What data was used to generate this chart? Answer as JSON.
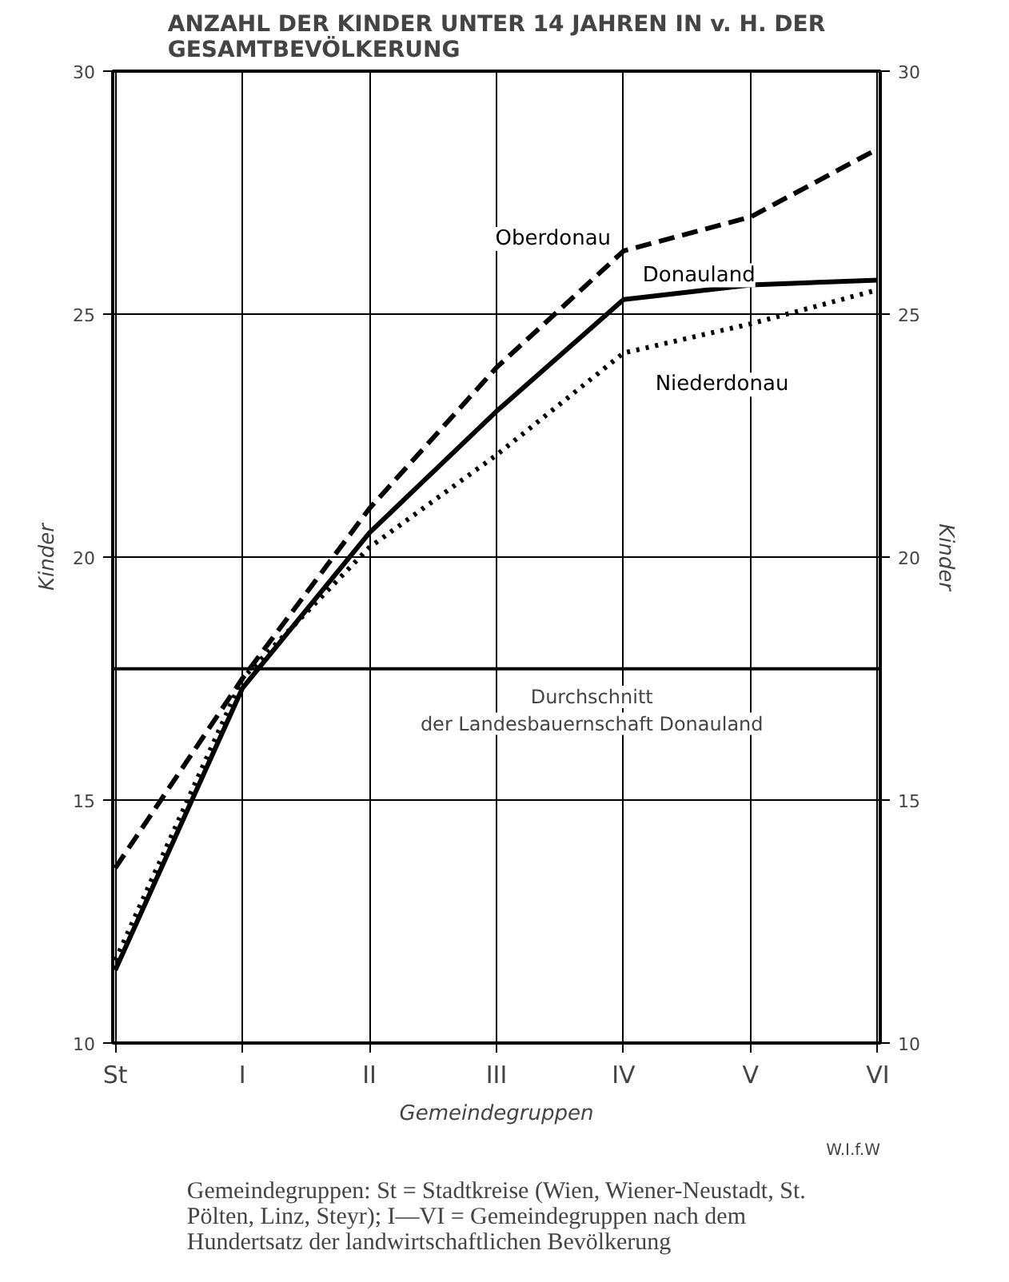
{
  "chart_data": {
    "type": "line",
    "title": "ANZAHL DER KINDER UNTER 14 JAHREN IN v. H. DER GESAMTBEVÖLKERUNG",
    "categories": [
      "St",
      "I",
      "II",
      "III",
      "IV",
      "V",
      "VI"
    ],
    "xlabel": "Gemeindegruppen",
    "ylabel": "Kinder",
    "y2label": "Kinder",
    "ylim": [
      10,
      30
    ],
    "yticks": [
      10,
      15,
      20,
      25,
      30
    ],
    "y2lim": [
      10,
      30
    ],
    "y2ticks": [
      10,
      15,
      20,
      25,
      30
    ],
    "grid": true,
    "marker": "none",
    "series": [
      {
        "name": "Oberdonau",
        "color": "#000000",
        "line_style": "dashed",
        "values": [
          13.6,
          17.5,
          21.0,
          23.9,
          26.3,
          27.0,
          28.4
        ]
      },
      {
        "name": "Donauland",
        "color": "#000000",
        "line_style": "solid",
        "values": [
          11.5,
          17.3,
          20.5,
          23.0,
          25.3,
          25.6,
          25.7
        ]
      },
      {
        "name": "Niederdonau",
        "color": "#000000",
        "line_style": "dotted",
        "values": [
          11.7,
          17.5,
          20.2,
          22.1,
          24.2,
          24.8,
          25.5
        ]
      }
    ],
    "ref_lines": [
      {
        "axis": "y",
        "value": 17.7,
        "label": "Durchschnitt der Landesbauernschaft Donauland",
        "color": "#000000"
      }
    ],
    "annotations": [
      "W.I.f.W",
      "Gemeindegruppen: St = Stadtkreise (Wien, Wiener-Neustadt, St. Pölten, Linz, Steyr); I—VI = Gemeindegruppen nach dem Hundertsatz der landwirtschaftlichen Bevölkerung"
    ]
  }
}
